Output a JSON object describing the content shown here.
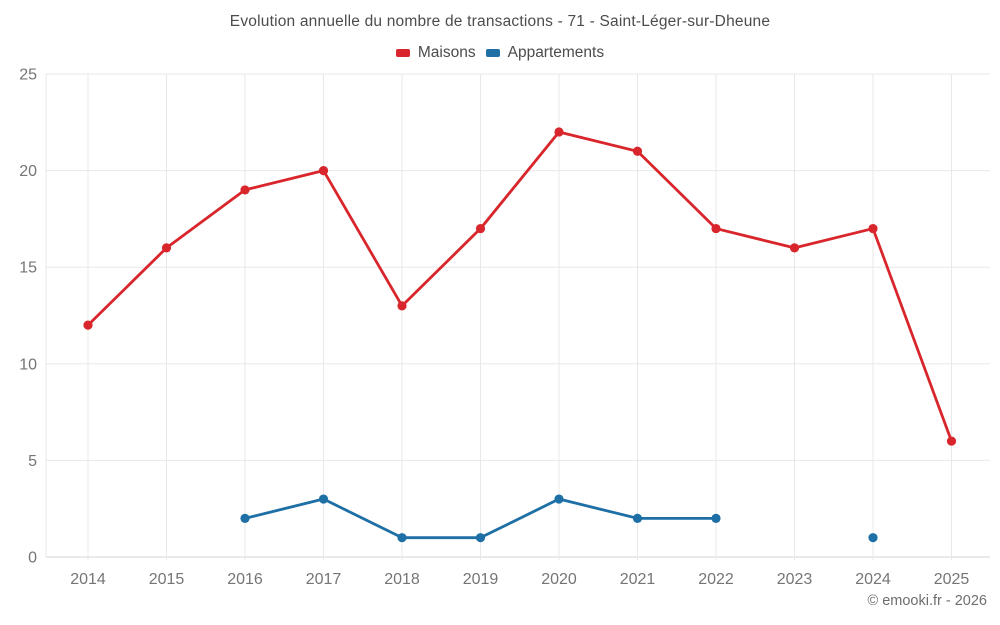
{
  "header": {
    "title": "Evolution annuelle du nombre de transactions - 71 - Saint-Léger-sur-Dheune"
  },
  "footer": {
    "copyright": "© emooki.fr - 2026"
  },
  "colors": {
    "maisons": "#d8262c",
    "appartements": "#1d6fa5",
    "grid": "#e8e8e8",
    "axis": "#d4d4d4",
    "tick_text": "#757575",
    "title_text": "#4c4c4c",
    "background": "#ffffff"
  },
  "chart_data": {
    "type": "line",
    "title": "Evolution annuelle du nombre de transactions - 71 - Saint-Léger-sur-Dheune",
    "categories": [
      "2014",
      "2015",
      "2016",
      "2017",
      "2018",
      "2019",
      "2020",
      "2021",
      "2022",
      "2023",
      "2024",
      "2025"
    ],
    "series": [
      {
        "name": "Maisons",
        "color": "#d8262c",
        "values": [
          12,
          16,
          19,
          20,
          13,
          17,
          22,
          21,
          17,
          16,
          17,
          6
        ]
      },
      {
        "name": "Appartements",
        "color": "#1d6fa5",
        "values": [
          null,
          null,
          2,
          3,
          1,
          1,
          3,
          2,
          2,
          null,
          1,
          null
        ]
      }
    ],
    "xlabel": "",
    "ylabel": "",
    "ylim": [
      0,
      25
    ],
    "yticks": [
      0,
      5,
      10,
      15,
      20,
      25
    ],
    "grid": true,
    "legend_position": "top"
  }
}
